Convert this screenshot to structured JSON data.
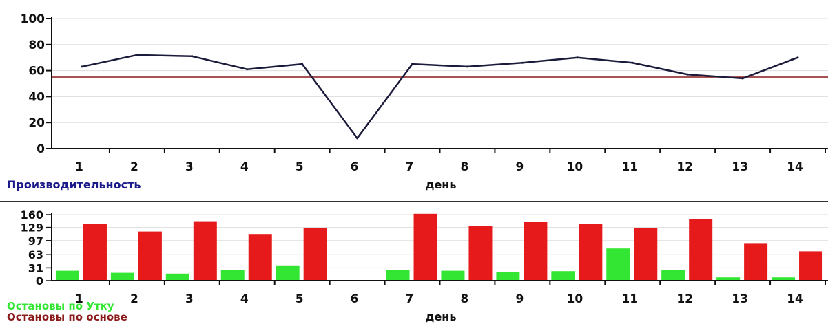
{
  "chart_data": [
    {
      "type": "line",
      "x": [
        "1",
        "2",
        "3",
        "4",
        "5",
        "6",
        "7",
        "8",
        "9",
        "10",
        "11",
        "12",
        "13",
        "14"
      ],
      "series": [
        {
          "name": "Производительность",
          "values": [
            63,
            72,
            71,
            61,
            65,
            8,
            65,
            63,
            66,
            70,
            66,
            57,
            54,
            70
          ],
          "color": "#1a1a3a"
        }
      ],
      "reference_line": {
        "value": 55,
        "color": "#8b1a1a"
      },
      "xlabel": "день",
      "ylim": [
        0,
        100
      ],
      "yticks": [
        "0",
        "20",
        "40",
        "60",
        "80",
        "100"
      ],
      "grid": true,
      "legend_color": "#1a1a8a"
    },
    {
      "type": "bar",
      "categories": [
        "1",
        "2",
        "3",
        "4",
        "5",
        "6",
        "7",
        "8",
        "9",
        "10",
        "11",
        "12",
        "13",
        "14"
      ],
      "series": [
        {
          "name": "Остановы по Утку",
          "values": [
            24,
            19,
            17,
            26,
            37,
            0,
            25,
            24,
            21,
            23,
            78,
            25,
            8,
            8
          ],
          "color": "#33e633"
        },
        {
          "name": "Остановы по основе",
          "values": [
            137,
            119,
            144,
            113,
            128,
            0,
            162,
            132,
            143,
            137,
            128,
            150,
            91,
            71
          ],
          "color": "#e61a1a"
        }
      ],
      "xlabel": "день",
      "ylim": [
        0,
        160
      ],
      "yticks": [
        "0",
        "31",
        "63",
        "97",
        "129",
        "160"
      ],
      "grid": true
    }
  ]
}
